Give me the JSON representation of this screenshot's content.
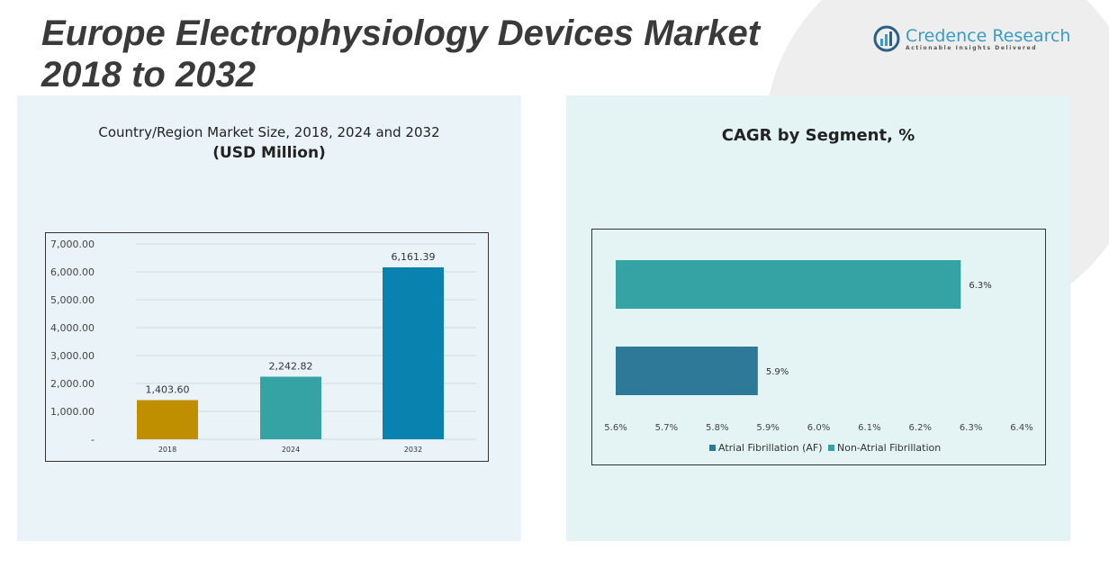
{
  "title_line1": "Europe Electrophysiology Devices Market",
  "title_line2": "2018 to 2032",
  "logo": {
    "name": "Credence Research",
    "tagline": "Actionable Insights Delivered"
  },
  "chart_data": [
    {
      "type": "bar",
      "title": "Country/Region Market Size, 2018, 2024 and 2032",
      "subtitle": "(USD Million)",
      "categories": [
        "2018",
        "2024",
        "2032"
      ],
      "values": [
        1403.6,
        2242.82,
        6161.39
      ],
      "data_labels": [
        "1,403.60",
        "2,242.82",
        "6,161.39"
      ],
      "colors": [
        "#c08f00",
        "#35a3a3",
        "#0a82b0"
      ],
      "ylim": [
        0,
        7000
      ],
      "yticks": [
        "-",
        "1,000.00",
        "2,000.00",
        "3,000.00",
        "4,000.00",
        "5,000.00",
        "6,000.00",
        "7,000.00"
      ],
      "grid": true
    },
    {
      "type": "bar",
      "orientation": "horizontal",
      "title": "CAGR by Segment, %",
      "series": [
        {
          "name": "Non-Atrial Fibrillation",
          "value": 6.3,
          "label": "6.3%",
          "color": "#35a3a3"
        },
        {
          "name": "Atrial Fibrillation (AF)",
          "value": 5.9,
          "label": "5.9%",
          "color": "#2e7898"
        }
      ],
      "xlim": [
        5.6,
        6.4
      ],
      "xticks": [
        "5.6%",
        "5.7%",
        "5.8%",
        "5.9%",
        "6.0%",
        "6.1%",
        "6.2%",
        "6.3%",
        "6.4%"
      ],
      "legend": [
        "Atrial Fibrillation (AF)",
        "Non-Atrial Fibrillation"
      ],
      "legend_position": "bottom"
    }
  ]
}
